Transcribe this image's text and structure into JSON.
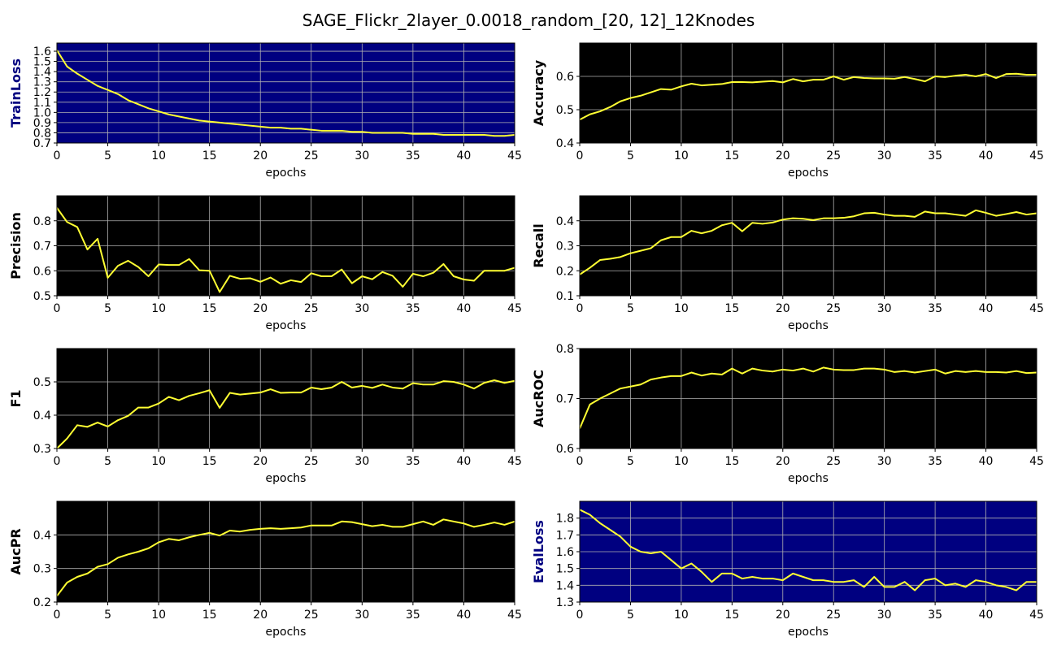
{
  "figure": {
    "title": "SAGE_Flickr_2layer_0.0018_random_[20, 12]_12Knodes"
  },
  "chart_data": [
    {
      "type": "line",
      "title": "",
      "xlabel": "epochs",
      "ylabel": "TrainLoss",
      "xlim": [
        0,
        45
      ],
      "ylim": [
        0.7,
        1.68
      ],
      "xticks": [
        0,
        5,
        10,
        15,
        20,
        25,
        30,
        35,
        40,
        45
      ],
      "yticks": [
        0.7,
        0.8,
        0.9,
        1.0,
        1.1,
        1.2,
        1.3,
        1.4,
        1.5,
        1.6
      ],
      "ytick_labels": [
        "0.7",
        "0.8",
        "0.9",
        "1.0",
        "1.1",
        "1.2",
        "1.3",
        "1.4",
        "1.5",
        "1.6"
      ],
      "background": "#000080",
      "line_color": "#ffff33",
      "label_color": "#000080",
      "series": [
        {
          "name": "TrainLoss",
          "values": [
            1.61,
            1.45,
            1.38,
            1.32,
            1.26,
            1.22,
            1.18,
            1.12,
            1.08,
            1.04,
            1.01,
            0.98,
            0.96,
            0.94,
            0.92,
            0.91,
            0.9,
            0.89,
            0.88,
            0.87,
            0.86,
            0.85,
            0.85,
            0.84,
            0.84,
            0.83,
            0.82,
            0.82,
            0.82,
            0.81,
            0.81,
            0.8,
            0.8,
            0.8,
            0.8,
            0.79,
            0.79,
            0.79,
            0.78,
            0.78,
            0.78,
            0.78,
            0.78,
            0.77,
            0.77,
            0.78
          ]
        }
      ]
    },
    {
      "type": "line",
      "title": "",
      "xlabel": "epochs",
      "ylabel": "Accuracy",
      "xlim": [
        0,
        45
      ],
      "ylim": [
        0.4,
        0.7
      ],
      "xticks": [
        0,
        5,
        10,
        15,
        20,
        25,
        30,
        35,
        40,
        45
      ],
      "yticks": [
        0.4,
        0.5,
        0.6
      ],
      "ytick_labels": [
        "0.4",
        "0.5",
        "0.6"
      ],
      "background": "#000000",
      "line_color": "#ffff33",
      "label_color": "#000000",
      "series": [
        {
          "name": "Accuracy",
          "values": [
            0.47,
            0.486,
            0.495,
            0.508,
            0.525,
            0.535,
            0.542,
            0.552,
            0.562,
            0.56,
            0.57,
            0.578,
            0.573,
            0.575,
            0.577,
            0.583,
            0.583,
            0.582,
            0.584,
            0.586,
            0.582,
            0.592,
            0.585,
            0.59,
            0.59,
            0.6,
            0.59,
            0.598,
            0.595,
            0.594,
            0.594,
            0.593,
            0.598,
            0.592,
            0.585,
            0.6,
            0.598,
            0.602,
            0.605,
            0.6,
            0.607,
            0.595,
            0.607,
            0.608,
            0.605,
            0.605
          ]
        }
      ]
    },
    {
      "type": "line",
      "title": "",
      "xlabel": "epochs",
      "ylabel": "Precision",
      "xlim": [
        0,
        45
      ],
      "ylim": [
        0.5,
        0.9
      ],
      "xticks": [
        0,
        5,
        10,
        15,
        20,
        25,
        30,
        35,
        40,
        45
      ],
      "yticks": [
        0.5,
        0.6,
        0.7,
        0.8
      ],
      "ytick_labels": [
        "0.5",
        "0.6",
        "0.7",
        "0.8"
      ],
      "background": "#000000",
      "line_color": "#ffff33",
      "label_color": "#000000",
      "series": [
        {
          "name": "Precision",
          "values": [
            0.852,
            0.795,
            0.775,
            0.685,
            0.728,
            0.572,
            0.62,
            0.64,
            0.615,
            0.578,
            0.625,
            0.623,
            0.623,
            0.647,
            0.602,
            0.6,
            0.515,
            0.58,
            0.568,
            0.57,
            0.556,
            0.573,
            0.548,
            0.562,
            0.555,
            0.59,
            0.578,
            0.578,
            0.605,
            0.55,
            0.578,
            0.566,
            0.595,
            0.58,
            0.536,
            0.588,
            0.578,
            0.592,
            0.627,
            0.578,
            0.565,
            0.56,
            0.6,
            0.6,
            0.6,
            0.612
          ]
        }
      ]
    },
    {
      "type": "line",
      "title": "",
      "xlabel": "epochs",
      "ylabel": "Recall",
      "xlim": [
        0,
        45
      ],
      "ylim": [
        0.1,
        0.5
      ],
      "xticks": [
        0,
        5,
        10,
        15,
        20,
        25,
        30,
        35,
        40,
        45
      ],
      "yticks": [
        0.1,
        0.2,
        0.3,
        0.4
      ],
      "ytick_labels": [
        "0.1",
        "0.2",
        "0.3",
        "0.4"
      ],
      "background": "#000000",
      "line_color": "#ffff33",
      "label_color": "#000000",
      "series": [
        {
          "name": "Recall",
          "values": [
            0.185,
            0.212,
            0.243,
            0.248,
            0.255,
            0.27,
            0.28,
            0.29,
            0.322,
            0.335,
            0.335,
            0.36,
            0.35,
            0.36,
            0.382,
            0.392,
            0.358,
            0.392,
            0.388,
            0.393,
            0.405,
            0.41,
            0.408,
            0.403,
            0.41,
            0.41,
            0.412,
            0.418,
            0.43,
            0.432,
            0.425,
            0.42,
            0.42,
            0.416,
            0.437,
            0.43,
            0.43,
            0.425,
            0.42,
            0.442,
            0.432,
            0.42,
            0.427,
            0.435,
            0.425,
            0.43
          ]
        }
      ]
    },
    {
      "type": "line",
      "title": "",
      "xlabel": "epochs",
      "ylabel": "F1",
      "xlim": [
        0,
        45
      ],
      "ylim": [
        0.3,
        0.6
      ],
      "xticks": [
        0,
        5,
        10,
        15,
        20,
        25,
        30,
        35,
        40,
        45
      ],
      "yticks": [
        0.3,
        0.4,
        0.5
      ],
      "ytick_labels": [
        "0.3",
        "0.4",
        "0.5"
      ],
      "background": "#000000",
      "line_color": "#ffff33",
      "label_color": "#000000",
      "series": [
        {
          "name": "F1",
          "values": [
            0.3,
            0.33,
            0.37,
            0.365,
            0.378,
            0.366,
            0.385,
            0.398,
            0.423,
            0.423,
            0.435,
            0.455,
            0.445,
            0.458,
            0.466,
            0.475,
            0.422,
            0.467,
            0.462,
            0.465,
            0.468,
            0.478,
            0.467,
            0.468,
            0.468,
            0.483,
            0.478,
            0.483,
            0.5,
            0.483,
            0.488,
            0.482,
            0.492,
            0.483,
            0.48,
            0.496,
            0.492,
            0.492,
            0.502,
            0.5,
            0.492,
            0.48,
            0.497,
            0.505,
            0.497,
            0.503
          ]
        }
      ]
    },
    {
      "type": "line",
      "title": "",
      "xlabel": "epochs",
      "ylabel": "AucROC",
      "xlim": [
        0,
        45
      ],
      "ylim": [
        0.6,
        0.8
      ],
      "xticks": [
        0,
        5,
        10,
        15,
        20,
        25,
        30,
        35,
        40,
        45
      ],
      "yticks": [
        0.6,
        0.7,
        0.8
      ],
      "ytick_labels": [
        "0.6",
        "0.7",
        "0.8"
      ],
      "background": "#000000",
      "line_color": "#ffff33",
      "label_color": "#000000",
      "series": [
        {
          "name": "AucROC",
          "values": [
            0.64,
            0.688,
            0.7,
            0.71,
            0.72,
            0.724,
            0.728,
            0.738,
            0.742,
            0.745,
            0.745,
            0.752,
            0.746,
            0.75,
            0.748,
            0.76,
            0.75,
            0.76,
            0.756,
            0.754,
            0.758,
            0.756,
            0.76,
            0.754,
            0.762,
            0.758,
            0.757,
            0.757,
            0.76,
            0.76,
            0.758,
            0.753,
            0.755,
            0.752,
            0.755,
            0.758,
            0.75,
            0.755,
            0.753,
            0.755,
            0.753,
            0.753,
            0.752,
            0.755,
            0.751,
            0.752
          ]
        }
      ]
    },
    {
      "type": "line",
      "title": "",
      "xlabel": "epochs",
      "ylabel": "AucPR",
      "xlim": [
        0,
        45
      ],
      "ylim": [
        0.2,
        0.5
      ],
      "xticks": [
        0,
        5,
        10,
        15,
        20,
        25,
        30,
        35,
        40,
        45
      ],
      "yticks": [
        0.2,
        0.3,
        0.4
      ],
      "ytick_labels": [
        "0.2",
        "0.3",
        "0.4"
      ],
      "background": "#000000",
      "line_color": "#ffff33",
      "label_color": "#000000",
      "series": [
        {
          "name": "AucPR",
          "values": [
            0.218,
            0.258,
            0.275,
            0.285,
            0.305,
            0.313,
            0.332,
            0.342,
            0.35,
            0.36,
            0.378,
            0.388,
            0.384,
            0.393,
            0.4,
            0.406,
            0.398,
            0.413,
            0.41,
            0.415,
            0.418,
            0.42,
            0.418,
            0.42,
            0.422,
            0.428,
            0.428,
            0.428,
            0.44,
            0.438,
            0.432,
            0.426,
            0.43,
            0.424,
            0.424,
            0.432,
            0.44,
            0.43,
            0.446,
            0.44,
            0.434,
            0.424,
            0.43,
            0.437,
            0.43,
            0.44
          ]
        }
      ]
    },
    {
      "type": "line",
      "title": "",
      "xlabel": "epochs",
      "ylabel": "EvalLoss",
      "xlim": [
        0,
        45
      ],
      "ylim": [
        1.3,
        1.9
      ],
      "xticks": [
        0,
        5,
        10,
        15,
        20,
        25,
        30,
        35,
        40,
        45
      ],
      "yticks": [
        1.3,
        1.4,
        1.5,
        1.6,
        1.7,
        1.8
      ],
      "ytick_labels": [
        "1.3",
        "1.4",
        "1.5",
        "1.6",
        "1.7",
        "1.8"
      ],
      "background": "#000080",
      "line_color": "#ffff33",
      "label_color": "#000080",
      "series": [
        {
          "name": "EvalLoss",
          "values": [
            1.85,
            1.82,
            1.77,
            1.73,
            1.69,
            1.63,
            1.6,
            1.59,
            1.6,
            1.55,
            1.5,
            1.53,
            1.48,
            1.42,
            1.47,
            1.47,
            1.44,
            1.45,
            1.44,
            1.44,
            1.43,
            1.47,
            1.45,
            1.43,
            1.43,
            1.42,
            1.42,
            1.43,
            1.39,
            1.45,
            1.39,
            1.39,
            1.42,
            1.37,
            1.43,
            1.44,
            1.4,
            1.41,
            1.39,
            1.43,
            1.42,
            1.4,
            1.39,
            1.37,
            1.42,
            1.42
          ]
        }
      ]
    }
  ]
}
